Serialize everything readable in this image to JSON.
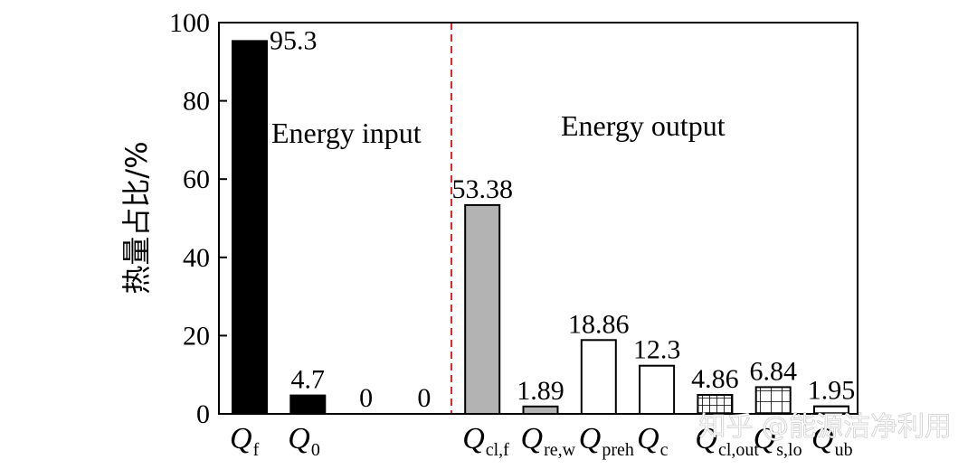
{
  "chart_data": {
    "type": "bar",
    "ylabel": "热量占比/%",
    "ylim": [
      0,
      100
    ],
    "yticks": [
      0,
      20,
      40,
      60,
      80,
      100
    ],
    "grid": false,
    "categories": [
      {
        "main": "Q",
        "sub": "f"
      },
      {
        "main": "Q",
        "sub": "0"
      },
      {
        "main": "",
        "sub": ""
      },
      {
        "main": "",
        "sub": ""
      },
      {
        "main": "Q",
        "sub": "cl,f"
      },
      {
        "main": "Q",
        "sub": "re,w"
      },
      {
        "main": "Q",
        "sub": "preh"
      },
      {
        "main": "Q",
        "sub": "c"
      },
      {
        "main": "Q",
        "sub": "cl,out"
      },
      {
        "main": "Q",
        "sub": "s,lo"
      },
      {
        "main": "Q",
        "sub": "ub"
      }
    ],
    "values": [
      95.3,
      4.7,
      0,
      0,
      53.38,
      1.89,
      18.86,
      12.3,
      4.86,
      6.84,
      1.95
    ],
    "data_labels": [
      "95.3",
      "4.7",
      "0",
      "0",
      "53.38",
      "1.89",
      "18.86",
      "12.3",
      "4.86",
      "6.84",
      "1.95"
    ],
    "bar_styles": [
      "black",
      "black",
      "none",
      "none",
      "gray",
      "gray",
      "white",
      "white",
      "grid",
      "grid-coarse",
      "hatch"
    ],
    "colors": {
      "black": "#000000",
      "gray": "#b3b3b3",
      "white": "#ffffff",
      "divider": "#e8262b"
    },
    "annotations": {
      "energy_input": "Energy input",
      "energy_output": "Energy output"
    },
    "watermark": "知乎 @能源洁净利用"
  }
}
